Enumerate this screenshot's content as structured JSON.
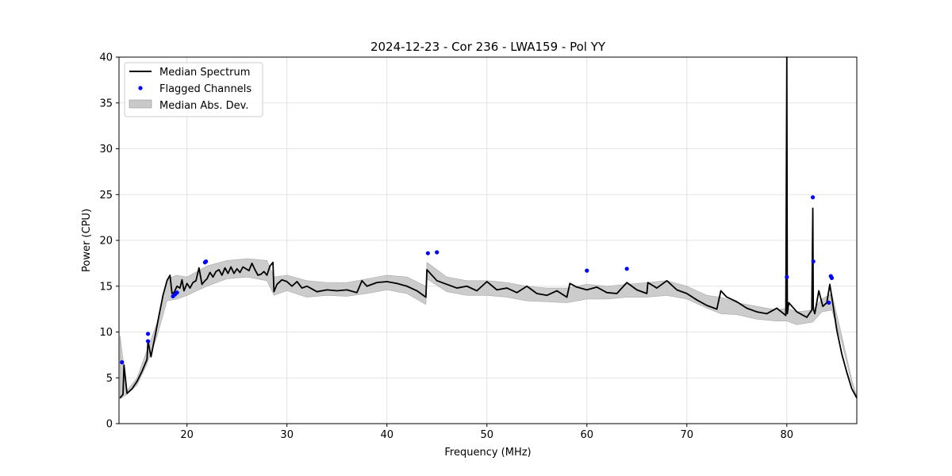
{
  "chart_data": {
    "type": "line",
    "title": "2024-12-23 - Cor 236 - LWA159 - Pol YY",
    "xlabel": "Frequency (MHz)",
    "ylabel": "Power (CPU)",
    "xlim": [
      13.2,
      87.0
    ],
    "ylim": [
      0,
      40
    ],
    "xticks": [
      20,
      30,
      40,
      50,
      60,
      70,
      80
    ],
    "yticks": [
      0,
      5,
      10,
      15,
      20,
      25,
      30,
      35,
      40
    ],
    "grid": true,
    "legend": {
      "placement": "top-left",
      "entries": [
        "Median Spectrum",
        "Flagged Channels",
        "Median Abs. Dev."
      ]
    },
    "colors": {
      "median": "#000000",
      "flagged": "#0000ff",
      "mad_fill": "#bfbfbf",
      "grid": "#dcdcdc"
    },
    "series": [
      {
        "name": "Median Spectrum",
        "kind": "line",
        "x": [
          13.3,
          13.6,
          13.7,
          14.0,
          14.5,
          15.0,
          15.5,
          16.0,
          16.1,
          16.4,
          16.8,
          17.2,
          17.6,
          18.0,
          18.3,
          18.5,
          18.7,
          19.0,
          19.3,
          19.5,
          19.7,
          20.0,
          20.3,
          20.6,
          20.9,
          21.2,
          21.5,
          21.8,
          22.0,
          22.3,
          22.6,
          22.9,
          23.2,
          23.5,
          23.8,
          24.1,
          24.4,
          24.7,
          25.0,
          25.3,
          25.6,
          25.9,
          26.2,
          26.5,
          26.8,
          27.1,
          27.4,
          27.7,
          28.0,
          28.3,
          28.6,
          28.7,
          29.0,
          29.5,
          30.0,
          30.5,
          31.0,
          31.5,
          32.0,
          32.5,
          33.0,
          34.0,
          35.0,
          36.0,
          37.0,
          37.5,
          38.0,
          39.0,
          40.0,
          41.0,
          42.0,
          43.0,
          43.9,
          44.0,
          45.0,
          46.0,
          47.0,
          48.0,
          49.0,
          50.0,
          51.0,
          52.0,
          53.0,
          54.0,
          55.0,
          56.0,
          57.0,
          58.0,
          58.3,
          59.0,
          60.0,
          61.0,
          62.0,
          63.0,
          64.0,
          65.0,
          66.0,
          66.1,
          67.0,
          68.0,
          69.0,
          70.0,
          71.0,
          72.0,
          73.0,
          73.4,
          74.0,
          75.0,
          76.0,
          77.0,
          78.0,
          79.0,
          79.9,
          80.0,
          80.05,
          80.2,
          81.0,
          82.0,
          82.5,
          82.6,
          82.65,
          82.8,
          83.2,
          83.6,
          84.0,
          84.3,
          84.5,
          85.0,
          85.5,
          86.0,
          86.5,
          87.0
        ],
        "y": [
          2.8,
          3.2,
          6.4,
          3.3,
          3.8,
          4.6,
          5.7,
          7.0,
          9.0,
          7.3,
          9.5,
          11.8,
          14.0,
          15.6,
          16.2,
          14.2,
          14.3,
          15.0,
          14.8,
          15.7,
          14.5,
          15.3,
          14.8,
          15.4,
          15.6,
          17.0,
          15.2,
          15.6,
          15.8,
          16.5,
          16.0,
          16.6,
          16.8,
          16.2,
          17.0,
          16.4,
          17.1,
          16.4,
          16.9,
          16.5,
          17.1,
          16.9,
          16.7,
          17.5,
          16.8,
          16.2,
          16.3,
          16.6,
          16.2,
          17.2,
          17.6,
          14.4,
          15.2,
          15.7,
          15.5,
          15.0,
          15.5,
          14.8,
          15.0,
          14.7,
          14.4,
          14.6,
          14.5,
          14.6,
          14.3,
          15.6,
          15.0,
          15.4,
          15.5,
          15.3,
          15.0,
          14.5,
          13.8,
          16.8,
          15.6,
          15.2,
          14.8,
          15.0,
          14.5,
          15.5,
          14.6,
          14.8,
          14.3,
          15.0,
          14.2,
          14.0,
          14.5,
          13.8,
          15.3,
          14.9,
          14.6,
          14.9,
          14.3,
          14.2,
          15.4,
          14.6,
          14.2,
          15.4,
          14.8,
          15.6,
          14.6,
          14.2,
          13.5,
          12.9,
          12.5,
          14.5,
          13.8,
          13.3,
          12.6,
          12.2,
          12.0,
          12.6,
          11.8,
          40.0,
          12.0,
          13.2,
          12.2,
          11.6,
          12.4,
          23.5,
          12.5,
          12.0,
          14.5,
          12.8,
          13.2,
          15.2,
          13.8,
          10.2,
          7.6,
          5.6,
          3.8,
          2.8
        ]
      },
      {
        "name": "Flagged Channels",
        "kind": "scatter",
        "x": [
          13.5,
          16.1,
          16.1,
          18.6,
          18.8,
          19.0,
          21.8,
          21.9,
          44.1,
          45.0,
          60.0,
          64.0,
          80.0,
          82.6,
          82.65,
          84.2,
          84.4,
          84.5
        ],
        "y": [
          6.7,
          9.8,
          9.0,
          13.9,
          14.1,
          14.3,
          17.6,
          17.7,
          18.6,
          18.7,
          16.7,
          16.9,
          16.0,
          24.7,
          17.7,
          13.2,
          16.1,
          15.9
        ]
      },
      {
        "name": "Median Abs. Dev.",
        "kind": "band",
        "x": [
          13.3,
          14.0,
          15.0,
          16.0,
          17.0,
          18.0,
          19.0,
          20.0,
          21.0,
          22.0,
          24.0,
          26.0,
          28.0,
          28.7,
          30.0,
          32.0,
          34.0,
          36.0,
          38.0,
          40.0,
          42.0,
          43.9,
          44.0,
          46.0,
          48.0,
          50.0,
          52.0,
          54.0,
          56.0,
          58.0,
          60.0,
          62.0,
          64.0,
          66.0,
          68.0,
          70.0,
          72.0,
          73.4,
          75.0,
          77.0,
          79.0,
          80.0,
          81.0,
          82.6,
          83.5,
          84.5,
          85.5,
          86.5,
          87.0
        ],
        "lower": [
          2.7,
          3.2,
          4.2,
          6.5,
          9.5,
          13.4,
          13.6,
          14.0,
          14.5,
          15.0,
          15.8,
          16.0,
          15.6,
          14.0,
          14.5,
          13.8,
          14.0,
          13.9,
          14.2,
          14.6,
          14.2,
          13.0,
          15.8,
          14.4,
          14.0,
          14.0,
          13.8,
          13.4,
          13.3,
          13.2,
          13.6,
          13.6,
          13.8,
          13.8,
          14.0,
          13.6,
          12.6,
          12.0,
          11.9,
          11.4,
          11.2,
          11.2,
          10.8,
          11.1,
          12.2,
          12.4,
          8.8,
          4.4,
          2.7
        ],
        "upper": [
          9.6,
          3.6,
          5.0,
          8.0,
          11.0,
          15.8,
          16.2,
          16.0,
          16.6,
          17.2,
          17.8,
          18.0,
          17.8,
          16.0,
          16.2,
          15.6,
          15.4,
          15.4,
          15.8,
          16.2,
          16.0,
          15.0,
          17.6,
          16.0,
          15.6,
          15.6,
          15.4,
          15.0,
          14.8,
          14.8,
          15.2,
          15.0,
          15.2,
          15.4,
          15.6,
          15.0,
          14.0,
          13.8,
          13.2,
          12.8,
          12.4,
          12.6,
          12.2,
          12.4,
          13.6,
          14.2,
          9.6,
          4.8,
          2.9
        ]
      }
    ]
  }
}
